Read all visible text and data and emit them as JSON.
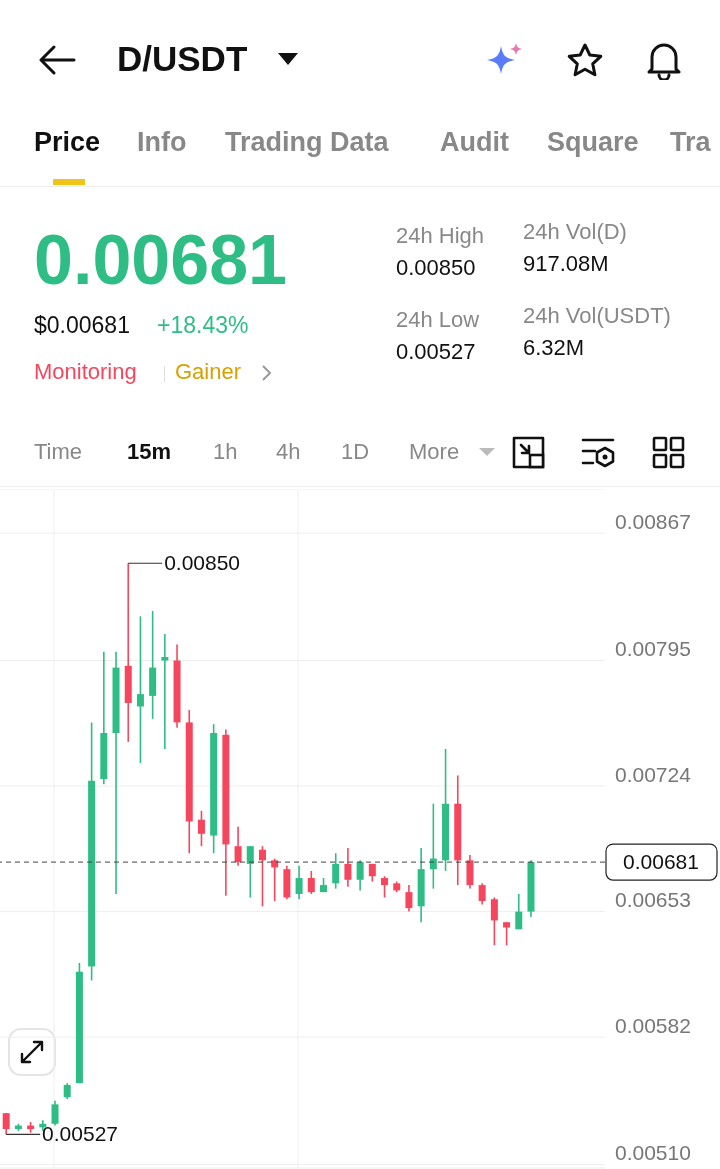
{
  "chart_data": {
    "type": "candlestick",
    "title": "D/USDT",
    "categories": [
      null,
      null,
      null,
      null,
      null,
      null,
      null,
      null,
      null,
      null,
      null,
      null,
      null,
      null,
      null,
      null,
      null,
      null,
      null,
      null,
      null,
      null,
      null,
      null,
      null,
      null,
      null,
      null,
      null,
      null,
      null,
      null,
      null,
      null,
      null,
      null,
      null,
      null,
      null,
      null,
      null,
      null,
      null,
      null
    ],
    "ohlc": [
      [
        0.00539,
        0.00539,
        0.00527,
        0.0053
      ],
      [
        0.0053,
        0.00533,
        0.00529,
        0.00532
      ],
      [
        0.00532,
        0.00534,
        0.00528,
        0.0053
      ],
      [
        0.00531,
        0.00535,
        0.00529,
        0.00533
      ],
      [
        0.00533,
        0.00546,
        0.00532,
        0.00544
      ],
      [
        0.00548,
        0.00556,
        0.00547,
        0.00555
      ],
      [
        0.00556,
        0.00624,
        0.00556,
        0.00619
      ],
      [
        0.00622,
        0.0076,
        0.00614,
        0.00727
      ],
      [
        0.00728,
        0.008,
        0.00725,
        0.00754
      ],
      [
        0.00754,
        0.008,
        0.00663,
        0.00791
      ],
      [
        0.00792,
        0.0085,
        0.00749,
        0.00771
      ],
      [
        0.00769,
        0.0082,
        0.00737,
        0.00776
      ],
      [
        0.00775,
        0.00823,
        0.00762,
        0.00791
      ],
      [
        0.00795,
        0.0081,
        0.00745,
        0.00797
      ],
      [
        0.00795,
        0.00804,
        0.00757,
        0.0076
      ],
      [
        0.0076,
        0.00767,
        0.00686,
        0.00704
      ],
      [
        0.00705,
        0.0071,
        0.0069,
        0.00697
      ],
      [
        0.00696,
        0.00759,
        0.00686,
        0.00754
      ],
      [
        0.00753,
        0.00756,
        0.00662,
        0.00691
      ],
      [
        0.0069,
        0.00701,
        0.00679,
        0.00681
      ],
      [
        0.0068,
        0.0069,
        0.00661,
        0.0069
      ],
      [
        0.00688,
        0.0069,
        0.00656,
        0.00682
      ],
      [
        0.00682,
        0.00683,
        0.00659,
        0.00678
      ],
      [
        0.00677,
        0.00679,
        0.0066,
        0.00661
      ],
      [
        0.00663,
        0.00679,
        0.0066,
        0.00672
      ],
      [
        0.00672,
        0.00676,
        0.00663,
        0.00664
      ],
      [
        0.00664,
        0.00672,
        0.00664,
        0.00668
      ],
      [
        0.00669,
        0.00686,
        0.00666,
        0.0068
      ],
      [
        0.0068,
        0.00689,
        0.00667,
        0.00671
      ],
      [
        0.00671,
        0.00682,
        0.00665,
        0.00681
      ],
      [
        0.0068,
        0.0068,
        0.0067,
        0.00673
      ],
      [
        0.00672,
        0.00673,
        0.00661,
        0.00668
      ],
      [
        0.00669,
        0.0067,
        0.00664,
        0.00665
      ],
      [
        0.00664,
        0.00668,
        0.00653,
        0.00655
      ],
      [
        0.00656,
        0.00689,
        0.00647,
        0.00677
      ],
      [
        0.00677,
        0.00714,
        0.00666,
        0.00683
      ],
      [
        0.00682,
        0.00745,
        0.00676,
        0.00714
      ],
      [
        0.00714,
        0.0073,
        0.00668,
        0.00682
      ],
      [
        0.00682,
        0.00685,
        0.00666,
        0.00668
      ],
      [
        0.00668,
        0.00669,
        0.00657,
        0.00659
      ],
      [
        0.0066,
        0.00661,
        0.00634,
        0.00648
      ],
      [
        0.00647,
        0.00647,
        0.00634,
        0.00644
      ],
      [
        0.00643,
        0.00663,
        0.00643,
        0.00653
      ],
      [
        0.00653,
        0.00682,
        0.0065,
        0.00681
      ]
    ],
    "colors": [
      "#f6465d",
      "#2ebd85",
      "#f6465d",
      "#2ebd85",
      "#2ebd85",
      "#2ebd85",
      "#2ebd85",
      "#2ebd85",
      "#2ebd85",
      "#2ebd85",
      "#f6465d",
      "#2ebd85",
      "#2ebd85",
      "#2ebd85",
      "#f6465d",
      "#f6465d",
      "#f6465d",
      "#2ebd85",
      "#f6465d",
      "#f6465d",
      "#2ebd85",
      "#f6465d",
      "#f6465d",
      "#f6465d",
      "#2ebd85",
      "#f6465d",
      "#2ebd85",
      "#2ebd85",
      "#f6465d",
      "#2ebd85",
      "#f6465d",
      "#f6465d",
      "#f6465d",
      "#f6465d",
      "#2ebd85",
      "#2ebd85",
      "#2ebd85",
      "#f6465d",
      "#f6465d",
      "#f6465d",
      "#f6465d",
      "#f6465d",
      "#2ebd85",
      "#2ebd85"
    ],
    "ylim": [
      0.00508,
      0.00892
    ],
    "yticks": [
      0.00867,
      0.00795,
      0.00724,
      0.00653,
      0.00582,
      {
        "value": 0.0051,
        "label": "0.00510"
      }
    ],
    "grid": "y",
    "tick_labels": "y",
    "ref_lines": [
      {
        "axis": "y",
        "value": 0.00681,
        "label": "0.00681",
        "line_style": "dashed"
      }
    ],
    "annotations": [
      "0.00681",
      "$0.00681",
      "+18.43%",
      "Monitoring",
      "Gainer",
      "24h High",
      "0.00850",
      "24h Low",
      "0.00527",
      "24h Vol(D)",
      "917.08M",
      "24h Vol(USDT)",
      "6.32M",
      "Price",
      "Info",
      "Trading Data",
      "Audit",
      "Square",
      "Tra",
      "Time",
      "15m",
      "1h",
      "4h",
      "1D",
      "More",
      "0.00850",
      "0.00527"
    ]
  }
}
